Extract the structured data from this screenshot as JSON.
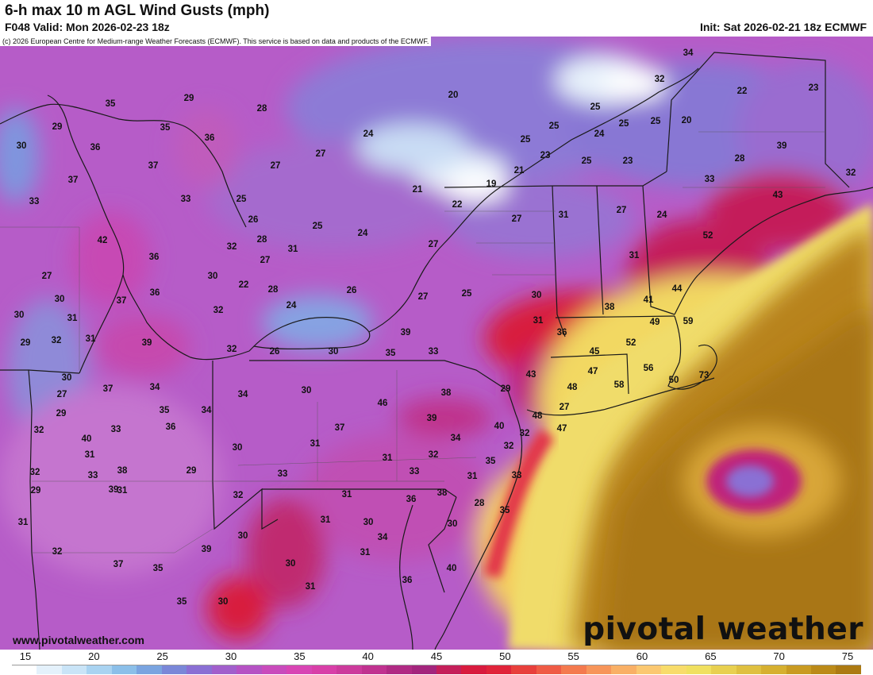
{
  "header": {
    "title": "6-h max 10 m AGL Wind Gusts (mph)",
    "valid": "F048 Valid: Mon 2026-02-23 18z",
    "init": "Init: Sat 2026-02-21 18z ECMWF"
  },
  "map": {
    "copyright": "(c) 2026 European Centre for Medium-range Weather Forecasts (ECMWF). This service is based on data and products of the ECMWF.",
    "labels": [
      "34",
      "32",
      "22",
      "23",
      "35",
      "29",
      "20",
      "28",
      "25",
      "24",
      "25",
      "25",
      "25",
      "20",
      "29",
      "35",
      "36",
      "24",
      "25",
      "23",
      "39",
      "30",
      "36",
      "37",
      "27",
      "27",
      "25",
      "23",
      "28",
      "37",
      "33",
      "21",
      "21",
      "19",
      "22",
      "33",
      "32",
      "43",
      "33",
      "25",
      "26",
      "24",
      "31",
      "27",
      "24",
      "52",
      "42",
      "32",
      "28",
      "25",
      "27",
      "31",
      "36",
      "31",
      "27",
      "22",
      "27",
      "30",
      "28",
      "26",
      "27",
      "25",
      "30",
      "27",
      "38",
      "41",
      "44",
      "36",
      "24",
      "32",
      "31",
      "37",
      "49",
      "59",
      "30",
      "39",
      "26",
      "30",
      "35",
      "33",
      "36",
      "45",
      "52",
      "31",
      "39",
      "29",
      "30",
      "31",
      "32",
      "32",
      "47",
      "56",
      "73",
      "30",
      "37",
      "34",
      "43",
      "58",
      "50",
      "48",
      "29",
      "27",
      "29",
      "34",
      "30",
      "38",
      "46",
      "27",
      "35",
      "34",
      "36",
      "39",
      "48",
      "40",
      "47",
      "32",
      "33",
      "37",
      "34",
      "32",
      "40",
      "31",
      "32",
      "31",
      "38",
      "30",
      "31",
      "32",
      "35",
      "32",
      "33",
      "29",
      "31",
      "33",
      "33",
      "31",
      "29",
      "39",
      "33",
      "32",
      "31",
      "36",
      "38",
      "28",
      "31",
      "31",
      "30",
      "35",
      "30",
      "39",
      "34",
      "30",
      "32",
      "37",
      "35",
      "31",
      "40",
      "30",
      "31",
      "36",
      "35",
      "30"
    ],
    "brand": "pivotal weather",
    "site": "www.pivotalweather.com"
  },
  "legend": {
    "ticks": [
      "15",
      "20",
      "25",
      "30",
      "35",
      "40",
      "45",
      "50",
      "55",
      "60",
      "65",
      "70",
      "75"
    ],
    "colors": [
      "#ffffff",
      "#e4f1fb",
      "#c9e4f7",
      "#a9d3f1",
      "#8bbfe9",
      "#7aa4e0",
      "#7a87d8",
      "#8a6fd4",
      "#a15fcc",
      "#b552c4",
      "#c94bbc",
      "#d845b4",
      "#d83fa8",
      "#cc3a9c",
      "#c03290",
      "#b02a84",
      "#a3257d",
      "#c41f5a",
      "#d81b3e",
      "#e0243a",
      "#e8403c",
      "#ef5b45",
      "#f47a4e",
      "#f7955a",
      "#f9b066",
      "#fbc871",
      "#f8dc6b",
      "#f0e060",
      "#e8d050",
      "#dfc040",
      "#d6b030",
      "#c99b22",
      "#bb8a18",
      "#ac7a12"
    ]
  }
}
